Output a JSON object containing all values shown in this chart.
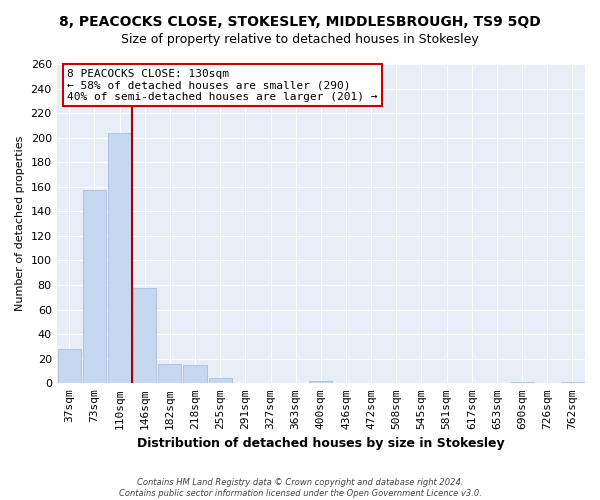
{
  "title": "8, PEACOCKS CLOSE, STOKESLEY, MIDDLESBROUGH, TS9 5QD",
  "subtitle": "Size of property relative to detached houses in Stokesley",
  "xlabel": "Distribution of detached houses by size in Stokesley",
  "ylabel": "Number of detached properties",
  "bar_labels": [
    "37sqm",
    "73sqm",
    "110sqm",
    "146sqm",
    "182sqm",
    "218sqm",
    "255sqm",
    "291sqm",
    "327sqm",
    "363sqm",
    "400sqm",
    "436sqm",
    "472sqm",
    "508sqm",
    "545sqm",
    "581sqm",
    "617sqm",
    "653sqm",
    "690sqm",
    "726sqm",
    "762sqm"
  ],
  "bar_values": [
    28,
    157,
    204,
    78,
    16,
    15,
    4,
    0,
    0,
    0,
    2,
    0,
    0,
    0,
    0,
    0,
    0,
    0,
    1,
    0,
    1
  ],
  "bar_color": "#c5d8f0",
  "bar_edge_color": "#a0b8d8",
  "vline_color": "#aa0000",
  "annotation_title": "8 PEACOCKS CLOSE: 130sqm",
  "annotation_line1": "← 58% of detached houses are smaller (290)",
  "annotation_line2": "40% of semi-detached houses are larger (201) →",
  "annotation_box_facecolor": "#ffffff",
  "annotation_box_edgecolor": "#cc0000",
  "ylim": [
    0,
    260
  ],
  "yticks": [
    0,
    20,
    40,
    60,
    80,
    100,
    120,
    140,
    160,
    180,
    200,
    220,
    240,
    260
  ],
  "footer_line1": "Contains HM Land Registry data © Crown copyright and database right 2024.",
  "footer_line2": "Contains public sector information licensed under the Open Government Licence v3.0.",
  "bg_color": "#ffffff",
  "plot_bg_color": "#e8eef8",
  "grid_color": "#ffffff",
  "title_fontsize": 10,
  "subtitle_fontsize": 9,
  "ylabel_fontsize": 8,
  "xlabel_fontsize": 9,
  "tick_fontsize": 8,
  "annotation_fontsize": 8
}
